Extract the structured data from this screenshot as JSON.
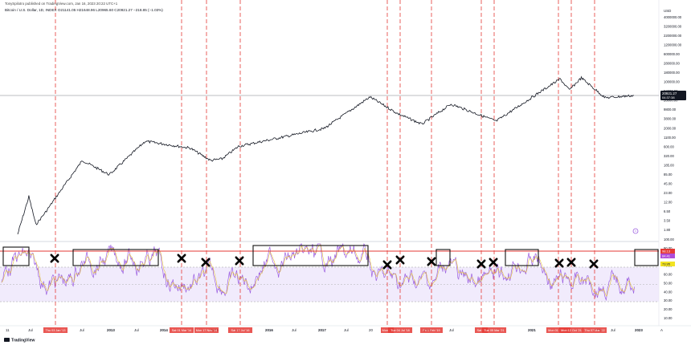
{
  "header": {
    "author": "TonySpilotro published on TradingView.com, Jan 16, 2023 20:22 UTC+1",
    "symbol_line": "Bitcoin / U.S. Dollar, 1D, INDEX  O21141.05  H21648.96  L20965.60  C20921.27  −218.85 (−1.03%)"
  },
  "footer": {
    "brand": "TradingView"
  },
  "price_axis": {
    "currency": "USD",
    "ticks": [
      "4000000.00",
      "3200000.00",
      "2200000.00",
      "1200000.00",
      "600000.00",
      "280000.00",
      "180000.00",
      "100000.00",
      "52000.00",
      "28000.00",
      "9800.00",
      "3800.00",
      "2000.00",
      "1100.00",
      "600.00",
      "320.00",
      "185.00",
      "85.00",
      "45.00",
      "23.00",
      "12.00",
      "6.50",
      "3.50",
      "1.80"
    ],
    "last_price": "20921.27",
    "last_time": "04:37:38"
  },
  "rsi_axis": {
    "ticks": [
      "100.00",
      "90.00",
      "80.00",
      "70.00",
      "60.00",
      "50.00",
      "40.00",
      "30.00",
      "20.00",
      "10.00"
    ],
    "label_top": "98.13",
    "label_mid": "84.41",
    "label_yellow": "73.95"
  },
  "time_axis": {
    "ticks": [
      "11",
      "Jul",
      "Jul",
      "2013",
      "Jul",
      "2014",
      "2015",
      "Jul",
      "2016",
      "Jul",
      "2017",
      "Jul",
      "20",
      "2019",
      "Jul",
      "2021",
      "2022",
      "Jul",
      "2023",
      "A"
    ]
  },
  "cycle_dates": [
    "Thu 03 Jan '13",
    "Sat 01 Mar '14",
    "Mon 17 Nov '14",
    "Sat 17 Jul '16",
    "Mon 22",
    "Tue 04 Jul '18",
    "Fri 1 Feb '19",
    "Sat 01",
    "Tue 05 Mar '21",
    "Mon 01 Oct '21",
    "Mon 12 Oct '21",
    "Thu 07 Mar '22"
  ],
  "chart_data": {
    "type": "line",
    "series": [
      {
        "values": [
          {
            "x": "2010-10",
            "y": 0.5
          },
          {
            "x": "2011-06",
            "y": 14
          },
          {
            "x": "2011-11",
            "y": 3
          },
          {
            "x": "2012-06",
            "y": 6
          },
          {
            "x": "2013-01",
            "y": 13
          },
          {
            "x": "2013-04",
            "y": 200
          },
          {
            "x": "2013-07",
            "y": 70
          },
          {
            "x": "2013-11",
            "y": 1100
          },
          {
            "x": "2014-06",
            "y": 600
          },
          {
            "x": "2015-01",
            "y": 200
          },
          {
            "x": "2015-08",
            "y": 230
          },
          {
            "x": "2016-06",
            "y": 700
          },
          {
            "x": "2017-06",
            "y": 2500
          },
          {
            "x": "2017-12",
            "y": 19000
          },
          {
            "x": "2018-06",
            "y": 6500
          },
          {
            "x": "2018-12",
            "y": 3300
          },
          {
            "x": "2019-06",
            "y": 12000
          },
          {
            "x": "2020-03",
            "y": 4000
          },
          {
            "x": "2020-12",
            "y": 28000
          },
          {
            "x": "2021-04",
            "y": 63000
          },
          {
            "x": "2021-07",
            "y": 30000
          },
          {
            "x": "2021-11",
            "y": 68000
          },
          {
            "x": "2022-06",
            "y": 18000
          },
          {
            "x": "2023-01",
            "y": 20921
          }
        ]
      }
    ]
  }
}
